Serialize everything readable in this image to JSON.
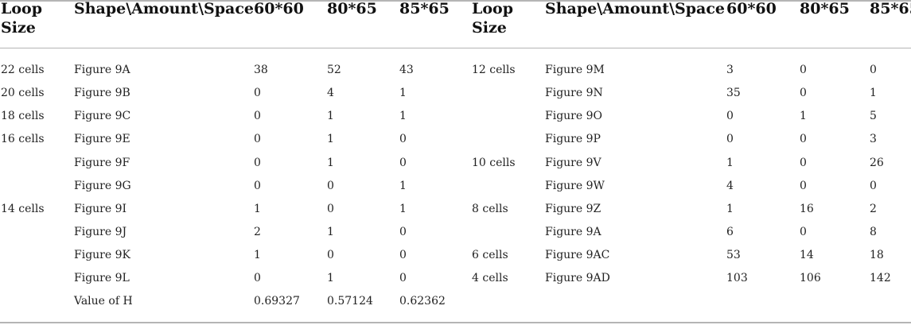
{
  "table": {
    "headers": {
      "loop_size": [
        "Loop",
        "Size"
      ],
      "shape": "Shape\\Amount\\Space",
      "c1": "60*60",
      "c2": "80*65",
      "c3": "85*65"
    },
    "left_rows": [
      {
        "loop": "22 cells",
        "shape": "Figure 9A",
        "a": "38",
        "b": "52",
        "c": "43"
      },
      {
        "loop": "20 cells",
        "shape": "Figure 9B",
        "a": "0",
        "b": "4",
        "c": "1"
      },
      {
        "loop": "18 cells",
        "shape": "Figure 9C",
        "a": "0",
        "b": "1",
        "c": "1"
      },
      {
        "loop": "16 cells",
        "shape": "Figure 9E",
        "a": "0",
        "b": "1",
        "c": "0"
      },
      {
        "loop": "",
        "shape": "Figure 9F",
        "a": "0",
        "b": "1",
        "c": "0"
      },
      {
        "loop": "",
        "shape": "Figure 9G",
        "a": "0",
        "b": "0",
        "c": "1"
      },
      {
        "loop": "14 cells",
        "shape": "Figure 9I",
        "a": "1",
        "b": "0",
        "c": "1"
      },
      {
        "loop": "",
        "shape": "Figure 9J",
        "a": "2",
        "b": "1",
        "c": "0"
      },
      {
        "loop": "",
        "shape": "Figure 9K",
        "a": "1",
        "b": "0",
        "c": "0"
      },
      {
        "loop": "",
        "shape": "Figure 9L",
        "a": "0",
        "b": "1",
        "c": "0"
      },
      {
        "loop": "",
        "shape": "Value of H",
        "a": "0.69327",
        "b": "0.57124",
        "c": "0.62362"
      }
    ],
    "right_rows": [
      {
        "loop": "12 cells",
        "shape": "Figure 9M",
        "a": "3",
        "b": "0",
        "c": "0"
      },
      {
        "loop": "",
        "shape": "Figure 9N",
        "a": "35",
        "b": "0",
        "c": "1"
      },
      {
        "loop": "",
        "shape": "Figure 9O",
        "a": "0",
        "b": "1",
        "c": "5"
      },
      {
        "loop": "",
        "shape": "Figure 9P",
        "a": "0",
        "b": "0",
        "c": "3"
      },
      {
        "loop": "10 cells",
        "shape": "Figure 9V",
        "a": "1",
        "b": "0",
        "c": "26"
      },
      {
        "loop": "",
        "shape": "Figure 9W",
        "a": "4",
        "b": "0",
        "c": "0"
      },
      {
        "loop": "8 cells",
        "shape": "Figure 9Z",
        "a": "1",
        "b": "16",
        "c": "2"
      },
      {
        "loop": "",
        "shape": "Figure 9A",
        "a": "6",
        "b": "0",
        "c": "8"
      },
      {
        "loop": "6 cells",
        "shape": "Figure 9AC",
        "a": "53",
        "b": "14",
        "c": "18"
      },
      {
        "loop": "4 cells",
        "shape": "Figure 9AD",
        "a": "103",
        "b": "106",
        "c": "142"
      }
    ]
  }
}
